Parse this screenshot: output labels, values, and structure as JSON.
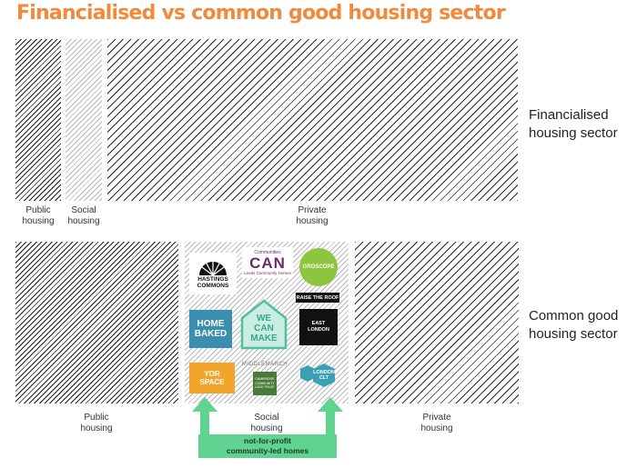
{
  "title": "Financialised vs common good housing sector",
  "financialised": {
    "label": "Financialised\nhousing sector",
    "blocks": [
      {
        "caption": "Public\nhousing"
      },
      {
        "caption": "Social\nhousing"
      },
      {
        "caption": "Private\nhousing"
      }
    ]
  },
  "common_good": {
    "label": "Common good\nhousing sector",
    "blocks": [
      {
        "caption": "Public\nhousing"
      },
      {
        "caption": "Social\nhousing"
      },
      {
        "caption": "Private\nhousing"
      }
    ]
  },
  "logos": {
    "hastings_commons": "HASTINGS\nCOMMONS",
    "communities_can_small": "Communities",
    "communities_can_big": "CAN",
    "communities_can_sub": "Leeds Community Homes",
    "groscope": "GROSCOPE",
    "raise_the_roof": "RAISE THE ROOF",
    "homebaked": "HOME\nBAKED",
    "we_can_make": "WE\nCAN\nMAKE",
    "east_london": "EAST\nLONDON",
    "middlemarch": "MIDDLEMARCH",
    "middlemarch_sub": "CAMBRIDGE\nCOMMUNITY\nLAND TRUST",
    "yorspace": "YOR\nSPACE",
    "london_clt": "LONDON\nCLT"
  },
  "banner": "not-for-profit\ncommunity-led homes",
  "colors": {
    "title": "#f08a3c",
    "banner": "#5fd38f",
    "arrow": "#5fd38f"
  }
}
